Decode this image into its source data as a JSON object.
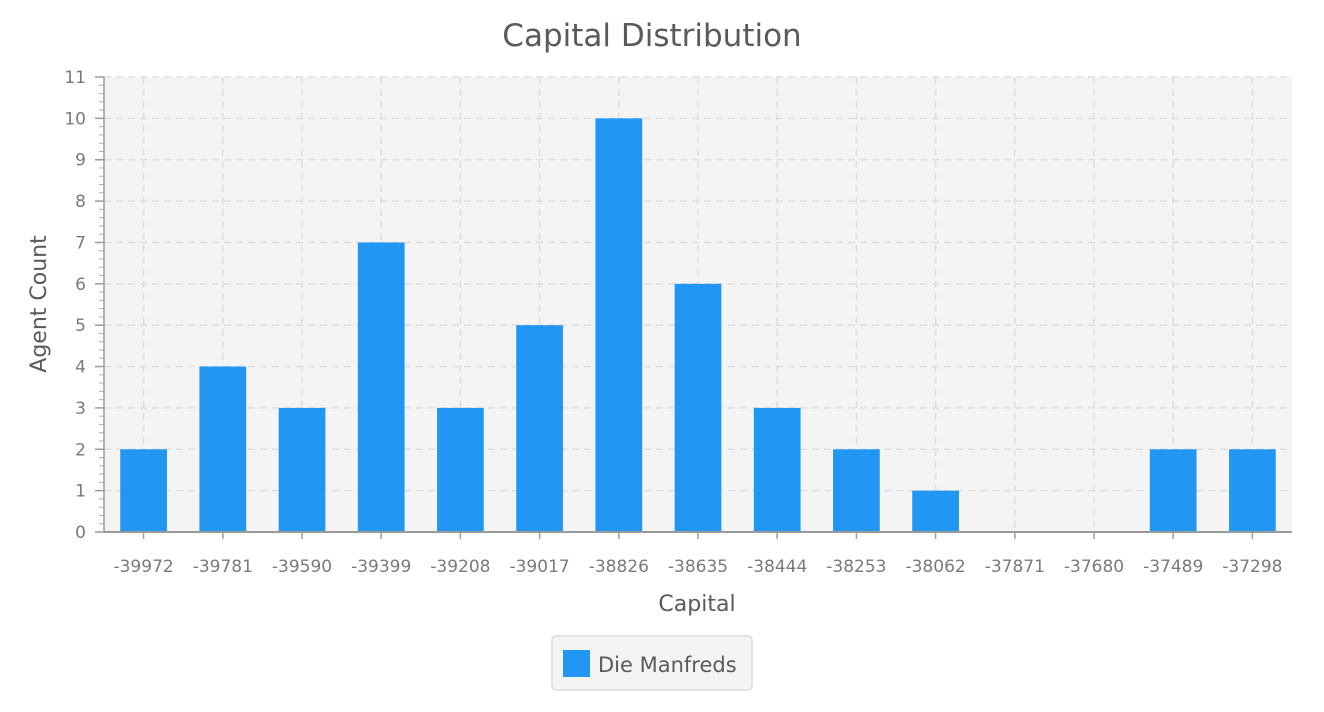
{
  "chart_data": {
    "type": "bar",
    "title": "Capital Distribution",
    "xlabel": "Capital",
    "ylabel": "Agent Count",
    "categories": [
      "-39972",
      "-39781",
      "-39590",
      "-39399",
      "-39208",
      "-39017",
      "-38826",
      "-38635",
      "-38444",
      "-38253",
      "-38062",
      "-37871",
      "-37680",
      "-37489",
      "-37298"
    ],
    "series": [
      {
        "name": "Die Manfreds",
        "color": "#2196f3",
        "values": [
          2,
          4,
          3,
          7,
          3,
          5,
          10,
          6,
          3,
          2,
          1,
          0,
          0,
          2,
          2
        ]
      }
    ],
    "ylim": [
      0,
      11
    ],
    "yticks": [
      "0",
      "1",
      "2",
      "3",
      "4",
      "5",
      "6",
      "7",
      "8",
      "9",
      "10",
      "11"
    ],
    "grid": true,
    "legend_position": "bottom-center"
  }
}
